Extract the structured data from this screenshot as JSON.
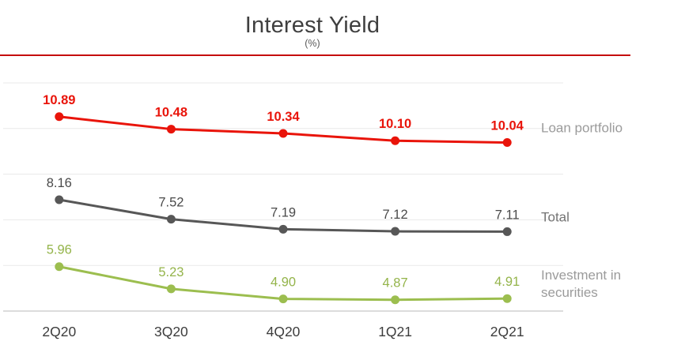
{
  "slide": {
    "title": "Interest Yield",
    "subtitle": "(%)"
  },
  "colors": {
    "divider_red": "#c50d0d",
    "gridline": "#e9e9e9",
    "axis_line": "#c6c6c6",
    "title_text": "#3f3f3f",
    "category_label": "#3d3d3d"
  },
  "chart_data": {
    "type": "line",
    "title": "Interest Yield",
    "ylabel": "(%)",
    "xlabel": "",
    "grid": true,
    "legend_position": "right",
    "decimals": 2,
    "categories": [
      "2Q20",
      "3Q20",
      "4Q20",
      "1Q21",
      "2Q21"
    ],
    "value_axis": {
      "min": 4.5,
      "max": 12,
      "major_unit": 1.5,
      "gridline_values": [
        12,
        10.5,
        9,
        7.5,
        6
      ],
      "tick_labels_visible": false
    },
    "series": [
      {
        "name": "Loan portfolio",
        "legend_lines": [
          "Loan portfolio"
        ],
        "color": "#e9140a",
        "label_color": "#e9140a",
        "label_bold": true,
        "legend_color": "#9b9b9b",
        "values": [
          10.89,
          10.48,
          10.34,
          10.1,
          10.04
        ]
      },
      {
        "name": "Total",
        "legend_lines": [
          "Total"
        ],
        "color": "#575757",
        "label_color": "#4a4a4a",
        "label_bold": false,
        "legend_color": "#747474",
        "values": [
          8.16,
          7.52,
          7.19,
          7.12,
          7.11
        ]
      },
      {
        "name": "Investment in securities",
        "legend_lines": [
          "Investment in",
          "securities"
        ],
        "color": "#9cbe4f",
        "label_color": "#94b44a",
        "label_bold": false,
        "legend_color": "#9b9b9b",
        "values": [
          5.96,
          5.23,
          4.9,
          4.87,
          4.91
        ]
      }
    ]
  }
}
